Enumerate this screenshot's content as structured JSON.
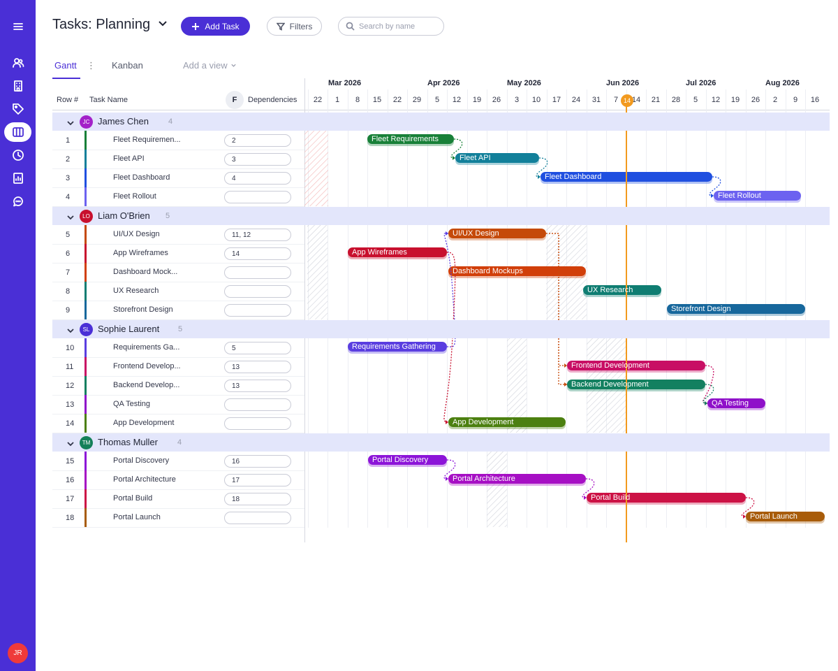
{
  "header": {
    "title": "Tasks: Planning",
    "add_task_label": "Add Task",
    "filters_label": "Filters",
    "search_placeholder": "Search by name"
  },
  "sidebar": {
    "items": [
      "menu-icon",
      "users-icon",
      "building-icon",
      "tag-icon",
      "board-icon",
      "clock-icon",
      "report-icon",
      "chat-icon"
    ],
    "active": "board-icon",
    "user_initials": "JR"
  },
  "tabs": {
    "gantt": "Gantt",
    "kanban": "Kanban",
    "add_view": "Add a view",
    "more": "⋮"
  },
  "table": {
    "row_header": "Row #",
    "task_header": "Task Name",
    "freeze_label": "F",
    "dep_header": "Dependencies"
  },
  "timeline": {
    "months": [
      "Mar 2026",
      "Apr 2026",
      "May 2026",
      "Jun 2026",
      "Jul 2026",
      "Aug 2026"
    ],
    "days": [
      "22",
      "1",
      "8",
      "15",
      "22",
      "29",
      "5",
      "12",
      "19",
      "26",
      "3",
      "10",
      "17",
      "24",
      "31",
      "7",
      "14",
      "21",
      "28",
      "5",
      "12",
      "19",
      "26",
      "2",
      "9",
      "16"
    ],
    "today": "14"
  },
  "groups": [
    {
      "name": "James Chen",
      "initials": "JC",
      "count": "4",
      "avatar_color": "#a322c9",
      "tasks": [
        {
          "row": "1",
          "name": "Fleet Requiremen...",
          "bar_label": "Fleet Requirements",
          "dep": "2",
          "color": "#188038"
        },
        {
          "row": "2",
          "name": "Fleet API",
          "bar_label": "Fleet API",
          "dep": "3",
          "color": "#12809a"
        },
        {
          "row": "3",
          "name": "Fleet Dashboard",
          "bar_label": "Fleet Dashboard",
          "dep": "4",
          "color": "#1f4fe0"
        },
        {
          "row": "4",
          "name": "Fleet Rollout",
          "bar_label": "Fleet Rollout",
          "dep": "",
          "color": "#6c62f0"
        }
      ]
    },
    {
      "name": "Liam O'Brien",
      "initials": "LO",
      "count": "5",
      "avatar_color": "#c8102e",
      "tasks": [
        {
          "row": "5",
          "name": "UI/UX Design",
          "bar_label": "UI/UX Design",
          "dep": "11, 12",
          "color": "#c54a0a"
        },
        {
          "row": "6",
          "name": "App Wireframes",
          "bar_label": "App Wireframes",
          "dep": "14",
          "color": "#c8102e"
        },
        {
          "row": "7",
          "name": "Dashboard Mock...",
          "bar_label": "Dashboard Mockups",
          "dep": "",
          "color": "#d13f0a"
        },
        {
          "row": "8",
          "name": "UX Research",
          "bar_label": "UX Research",
          "dep": "",
          "color": "#0f7d72"
        },
        {
          "row": "9",
          "name": "Storefront Design",
          "bar_label": "Storefront Design",
          "dep": "",
          "color": "#17679c"
        }
      ]
    },
    {
      "name": "Sophie Laurent",
      "initials": "SL",
      "count": "5",
      "avatar_color": "#4a2fd6",
      "tasks": [
        {
          "row": "10",
          "name": "Requirements Ga...",
          "bar_label": "Requirements Gathering",
          "dep": "5",
          "color": "#5a3ee0"
        },
        {
          "row": "11",
          "name": "Frontend Develop...",
          "bar_label": "Frontend Development",
          "dep": "13",
          "color": "#c80f64"
        },
        {
          "row": "12",
          "name": "Backend Develop...",
          "bar_label": "Backend Development",
          "dep": "13",
          "color": "#138060"
        },
        {
          "row": "13",
          "name": "QA Testing",
          "bar_label": "QA Testing",
          "dep": "",
          "color": "#8f10c9"
        },
        {
          "row": "14",
          "name": "App Development",
          "bar_label": "App Development",
          "dep": "",
          "color": "#4c8010"
        }
      ]
    },
    {
      "name": "Thomas Muller",
      "initials": "TM",
      "count": "4",
      "avatar_color": "#148059",
      "tasks": [
        {
          "row": "15",
          "name": "Portal Discovery",
          "bar_label": "Portal Discovery",
          "dep": "16",
          "color": "#8c14d8"
        },
        {
          "row": "16",
          "name": "Portal Architecture",
          "bar_label": "Portal Architecture",
          "dep": "17",
          "color": "#a60fc4"
        },
        {
          "row": "17",
          "name": "Portal Build",
          "bar_label": "Portal Build",
          "dep": "18",
          "color": "#cc1245"
        },
        {
          "row": "18",
          "name": "Portal Launch",
          "bar_label": "Portal Launch",
          "dep": "",
          "color": "#a85c0a"
        }
      ]
    }
  ],
  "colors": {
    "brand": "#4a2fd6",
    "group_band": "#e3e6fb",
    "group_bar": "#5b5cf0",
    "today_line": "#f29a1f"
  }
}
